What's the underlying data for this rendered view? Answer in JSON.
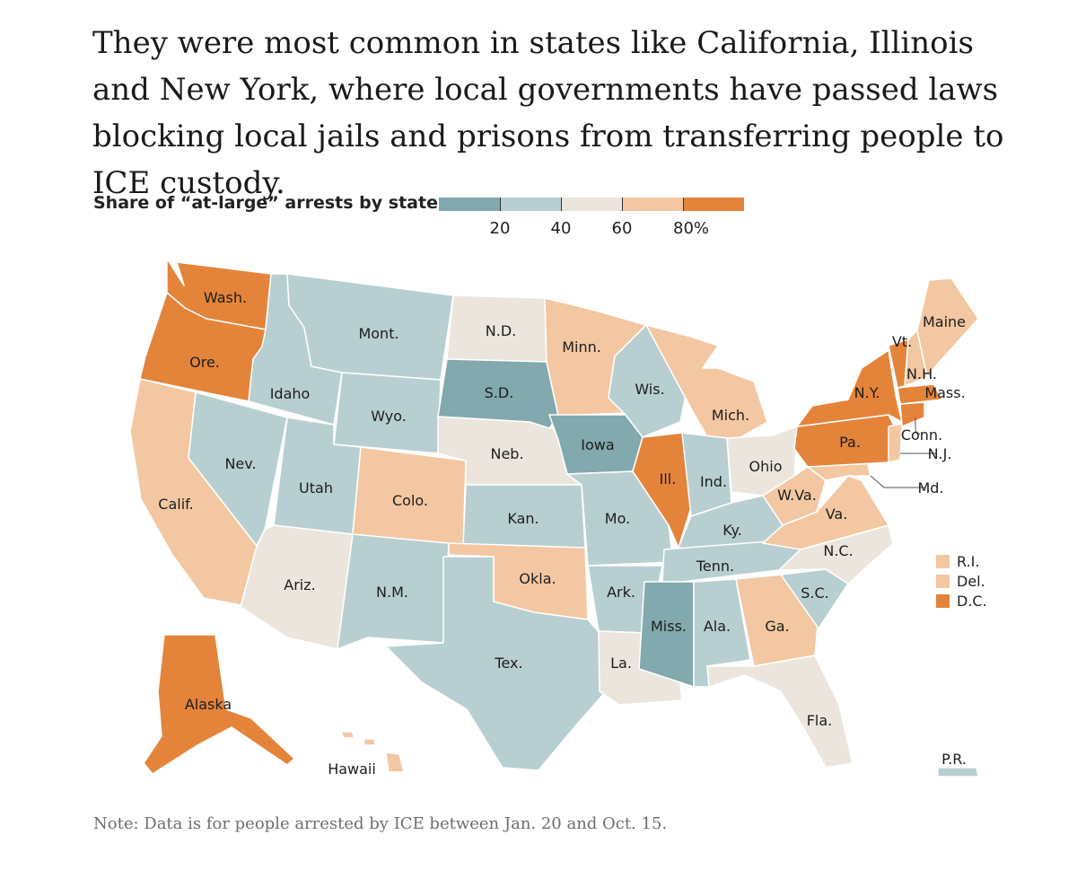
{
  "headline": "They were most common in states like California, Illinois and New York, where local governments have passed laws blocking local jails and prisons from transferring people to ICE custody.",
  "legend": {
    "title": "Share of “at-large” arrests by state",
    "tick_labels": [
      "20",
      "40",
      "60",
      "80%"
    ],
    "colors": [
      "#82a9ad",
      "#b8cfd1",
      "#ebe5dd",
      "#f3c7a1",
      "#e4843a"
    ]
  },
  "colors": {
    "bin_1": "#82a9ad",
    "bin_2": "#b8cfd1",
    "bin_3": "#ebe5dd",
    "bin_4": "#f3c7a1",
    "bin_5": "#e4843a",
    "border": "#ffffff"
  },
  "states": [
    {
      "label": "Wash.",
      "bin": 5
    },
    {
      "label": "Ore.",
      "bin": 5
    },
    {
      "label": "Calif.",
      "bin": 4
    },
    {
      "label": "Idaho",
      "bin": 2
    },
    {
      "label": "Nev.",
      "bin": 2
    },
    {
      "label": "Mont.",
      "bin": 2
    },
    {
      "label": "Wyo.",
      "bin": 2
    },
    {
      "label": "Utah",
      "bin": 2
    },
    {
      "label": "Ariz.",
      "bin": 3
    },
    {
      "label": "Colo.",
      "bin": 4
    },
    {
      "label": "N.M.",
      "bin": 2
    },
    {
      "label": "N.D.",
      "bin": 3
    },
    {
      "label": "S.D.",
      "bin": 1
    },
    {
      "label": "Neb.",
      "bin": 3
    },
    {
      "label": "Kan.",
      "bin": 2
    },
    {
      "label": "Okla.",
      "bin": 4
    },
    {
      "label": "Tex.",
      "bin": 2
    },
    {
      "label": "Minn.",
      "bin": 4
    },
    {
      "label": "Iowa",
      "bin": 1
    },
    {
      "label": "Mo.",
      "bin": 2
    },
    {
      "label": "Ark.",
      "bin": 2
    },
    {
      "label": "La.",
      "bin": 3
    },
    {
      "label": "Wis.",
      "bin": 2
    },
    {
      "label": "Ill.",
      "bin": 5
    },
    {
      "label": "Mich.",
      "bin": 4
    },
    {
      "label": "Ind.",
      "bin": 2
    },
    {
      "label": "Ohio",
      "bin": 3
    },
    {
      "label": "Ky.",
      "bin": 2
    },
    {
      "label": "Tenn.",
      "bin": 2
    },
    {
      "label": "Miss.",
      "bin": 1
    },
    {
      "label": "Ala.",
      "bin": 2
    },
    {
      "label": "Ga.",
      "bin": 4
    },
    {
      "label": "Fla.",
      "bin": 3
    },
    {
      "label": "S.C.",
      "bin": 2
    },
    {
      "label": "N.C.",
      "bin": 3
    },
    {
      "label": "Va.",
      "bin": 4
    },
    {
      "label": "W.Va.",
      "bin": 4
    },
    {
      "label": "Md.",
      "bin": 4
    },
    {
      "label": "Pa.",
      "bin": 5
    },
    {
      "label": "N.Y.",
      "bin": 5
    },
    {
      "label": "N.J.",
      "bin": 4
    },
    {
      "label": "Conn.",
      "bin": 5
    },
    {
      "label": "Mass.",
      "bin": 5
    },
    {
      "label": "Vt.",
      "bin": 5
    },
    {
      "label": "N.H.",
      "bin": 4
    },
    {
      "label": "Maine",
      "bin": 4
    },
    {
      "label": "Alaska",
      "bin": 5
    },
    {
      "label": "Hawaii",
      "bin": 4
    },
    {
      "label": "P.R.",
      "bin": 2
    }
  ],
  "small_states": [
    {
      "label": "R.I.",
      "bin": 4
    },
    {
      "label": "Del.",
      "bin": 4
    },
    {
      "label": "D.C.",
      "bin": 5
    }
  ],
  "note": "Note: Data is for people arrested by ICE between Jan. 20 and Oct. 15."
}
